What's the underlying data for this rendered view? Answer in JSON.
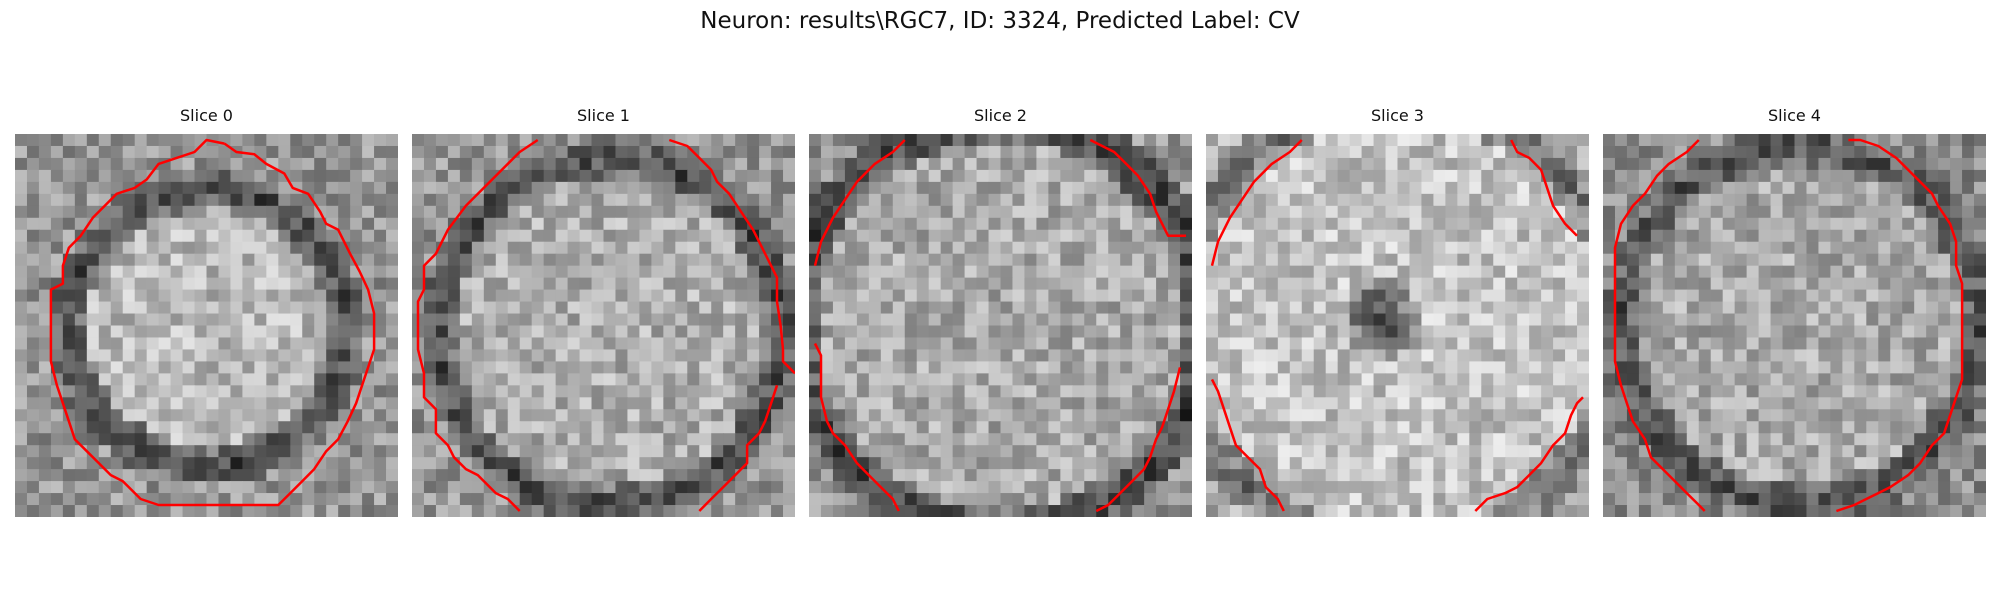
{
  "figure": {
    "title": "Neuron: results\\RGC7, ID: 3324, Predicted Label: CV"
  },
  "colors": {
    "contour": "#ff0000"
  },
  "slices": [
    {
      "title": "Slice 0",
      "kind": "full-ring"
    },
    {
      "title": "Slice 1",
      "kind": "partial-ring"
    },
    {
      "title": "Slice 2",
      "kind": "corners"
    },
    {
      "title": "Slice 3",
      "kind": "dark-center-corners"
    },
    {
      "title": "Slice 4",
      "kind": "octagon-open-bottom"
    }
  ]
}
